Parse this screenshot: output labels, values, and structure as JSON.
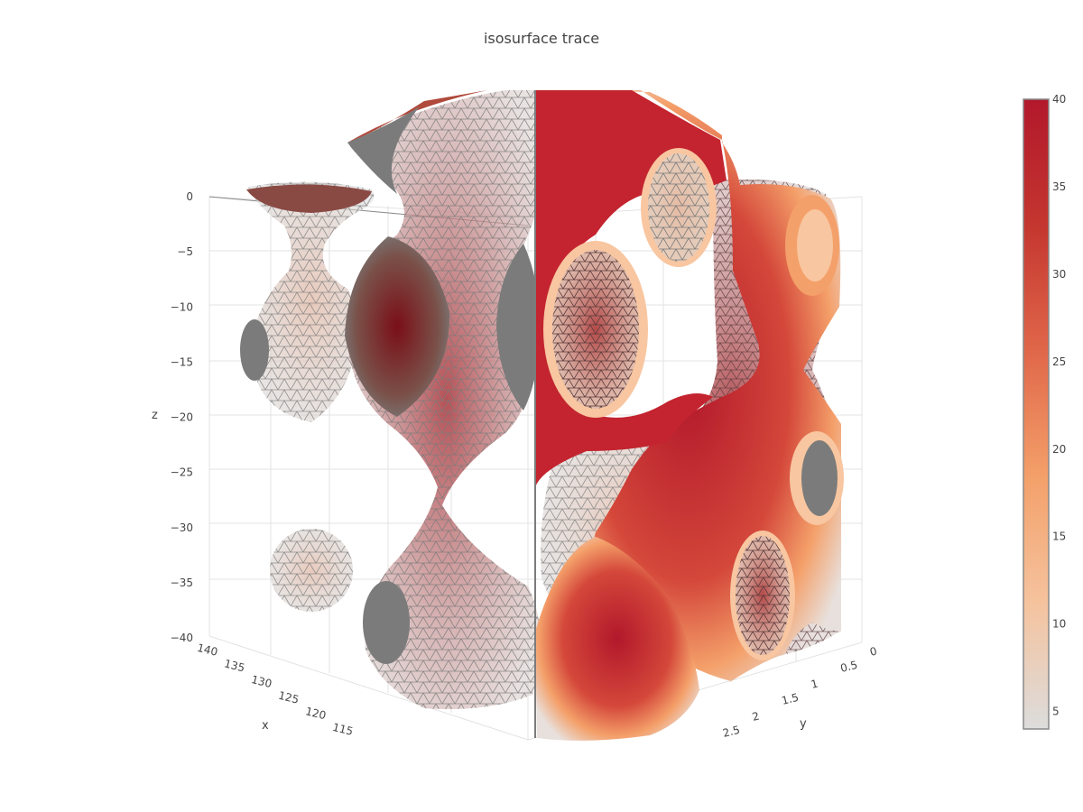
{
  "chart_data": {
    "type": "isosurface",
    "title": "isosurface trace",
    "axes": {
      "x": {
        "label": "x",
        "ticks": [
          "140",
          "135",
          "130",
          "125",
          "120",
          "115"
        ],
        "range": [
          112,
          140
        ]
      },
      "y": {
        "label": "y",
        "ticks": [
          "0",
          "0.5",
          "1",
          "1.5",
          "2",
          "2.5"
        ],
        "range": [
          0,
          2.8
        ]
      },
      "z": {
        "label": "z",
        "ticks": [
          "0",
          "−5",
          "−10",
          "−15",
          "−20",
          "−25",
          "−30",
          "−35",
          "−40"
        ],
        "range": [
          -40,
          0
        ]
      }
    },
    "colorbar": {
      "ticks": [
        "40",
        "35",
        "30",
        "25",
        "20",
        "15",
        "10",
        "5"
      ],
      "tick_values": [
        40,
        35,
        30,
        25,
        20,
        15,
        10,
        5
      ],
      "range": [
        4,
        40
      ],
      "colorscale": [
        "#dcdcdc",
        "#f5c39e",
        "#f4a06a",
        "#e0674a",
        "#c4362f",
        "#b2182b"
      ]
    },
    "grid": true,
    "colors": {
      "gray_cap": "#7b7b7b",
      "dark_red": "#8b0f1b",
      "wire": "#8a8a8a"
    }
  }
}
